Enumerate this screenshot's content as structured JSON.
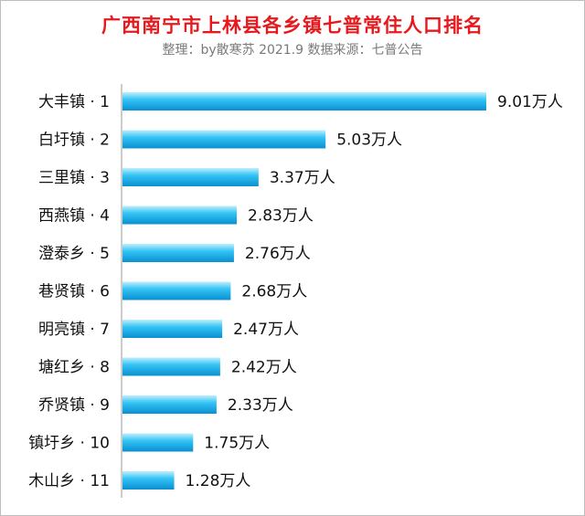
{
  "header": {
    "title": "广西南宁市上林县各乡镇七普常住人口排名",
    "subtitle": "整理：by散寒苏  2021.9  数据来源：七普公告"
  },
  "colors": {
    "title": "#e8191c",
    "bar_light": "#bfeefe",
    "bar_mid": "#33c4f4",
    "bar_dark": "#0a8fd0"
  },
  "chart_data": {
    "type": "bar",
    "orientation": "horizontal",
    "title": "广西南宁市上林县各乡镇七普常住人口排名",
    "subtitle": "整理：by散寒苏  2021.9  数据来源：七普公告",
    "categories": [
      "大丰镇 · 1",
      "白圩镇 · 2",
      "三里镇 · 3",
      "西燕镇 · 4",
      "澄泰乡 · 5",
      "巷贤镇 · 6",
      "明亮镇 · 7",
      "塘红乡 · 8",
      "乔贤镇 · 9",
      "镇圩乡 · 10",
      "木山乡 · 11"
    ],
    "values": [
      9.01,
      5.03,
      3.37,
      2.83,
      2.76,
      2.68,
      2.47,
      2.42,
      2.33,
      1.75,
      1.28
    ],
    "value_labels": [
      "9.01万人",
      "5.03万人",
      "3.37万人",
      "2.83万人",
      "2.76万人",
      "2.68万人",
      "2.47万人",
      "2.42万人",
      "2.33万人",
      "1.75万人",
      "1.28万人"
    ],
    "unit": "万人",
    "xlim": [
      0,
      9.01
    ],
    "grid": false,
    "legend": "none"
  }
}
